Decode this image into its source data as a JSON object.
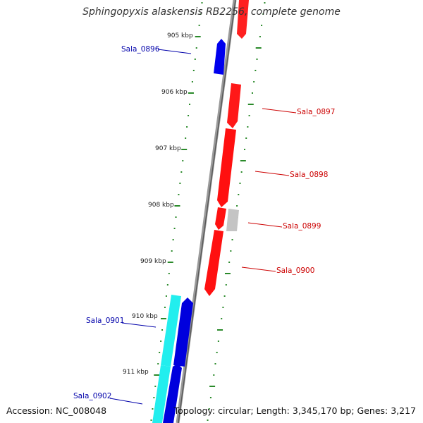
{
  "title": "Sphingopyxis alaskensis RB2256, complete genome",
  "accession": "Accession: NC_008048",
  "topology": "Topology: circular; Length: 3,345,170 bp; Genes: 3,217",
  "colors": {
    "backbone": "#808080",
    "tick": "#2a8a2a",
    "forward_gene": "#ff0000",
    "reverse_gene": "#0000ff",
    "other_gene": "#bbbbbb",
    "rna_gene": "#00e0e0",
    "forward_label": "#cc0000",
    "reverse_label": "#0000aa"
  },
  "kbp_labels": [
    "905 kbp",
    "906 kbp",
    "907 kbp",
    "908 kbp",
    "909 kbp",
    "910 kbp",
    "911 kbp"
  ],
  "gene_labels": [
    {
      "text": "Sala_0896",
      "strand": "reverse"
    },
    {
      "text": "Sala_0897",
      "strand": "forward"
    },
    {
      "text": "Sala_0898",
      "strand": "forward"
    },
    {
      "text": "Sala_0899",
      "strand": "forward"
    },
    {
      "text": "Sala_0900",
      "strand": "forward"
    },
    {
      "text": "Sala_0901",
      "strand": "reverse"
    },
    {
      "text": "Sala_0902",
      "strand": "reverse"
    }
  ]
}
